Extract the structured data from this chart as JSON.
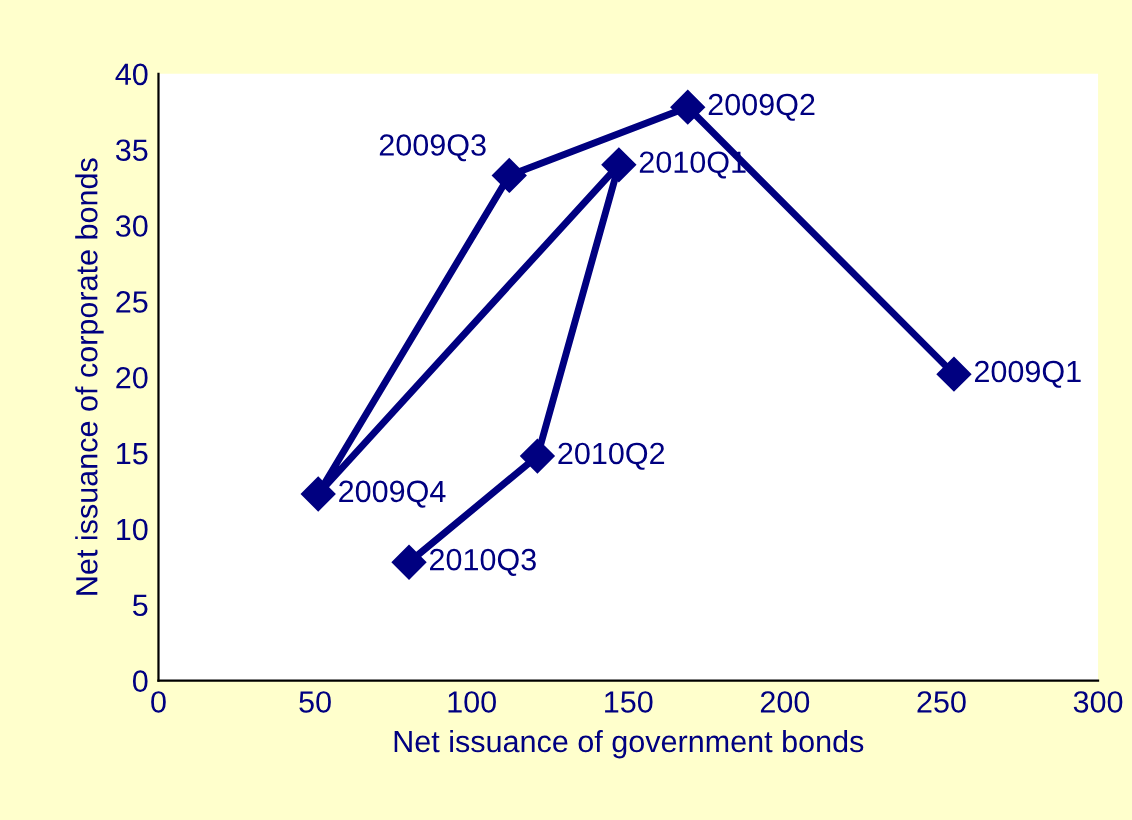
{
  "chart_data": {
    "type": "line",
    "xlabel": "Net issuance of government bonds",
    "ylabel": "Net issuance of corporate bonds",
    "x": [
      254,
      169,
      112,
      51,
      147,
      121,
      80
    ],
    "series": [
      {
        "color": "#000080",
        "values": [
          20.2,
          37.8,
          33.3,
          12.3,
          34,
          14.8,
          7.8
        ]
      }
    ],
    "marker": "diamond",
    "line_style": "solid",
    "xlim": [
      0,
      300
    ],
    "xticks": [
      0,
      50,
      100,
      150,
      200,
      250,
      300
    ],
    "ylim": [
      0,
      40
    ],
    "yticks": [
      0,
      5,
      10,
      15,
      20,
      25,
      30,
      35,
      40
    ],
    "grid": false,
    "legend": false,
    "annotations": [
      {
        "text": "2009Q1",
        "x": 254,
        "y": 20.2
      },
      {
        "text": "2009Q2",
        "x": 169,
        "y": 37.8
      },
      {
        "text": "2009Q3",
        "x": 112,
        "y": 33.3
      },
      {
        "text": "2009Q4",
        "x": 51,
        "y": 12.3
      },
      {
        "text": "2010Q1",
        "x": 147,
        "y": 34
      },
      {
        "text": "2010Q2",
        "x": 121,
        "y": 14.8
      },
      {
        "text": "2010Q3",
        "x": 80,
        "y": 7.8
      }
    ]
  }
}
